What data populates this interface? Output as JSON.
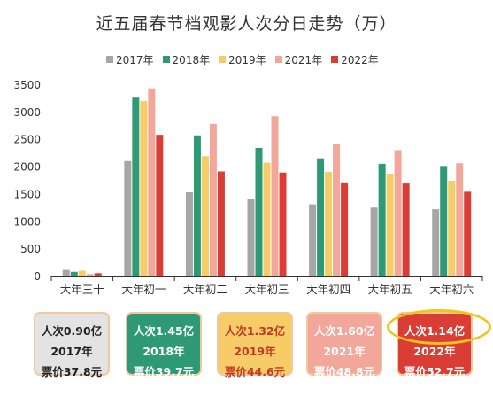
{
  "chart_data": {
    "type": "bar",
    "title": "近五届春节档观影人次分日走势（万）",
    "categories": [
      "大年三十",
      "大年初一",
      "大年初二",
      "大年初三",
      "大年初四",
      "大年初五",
      "大年初六"
    ],
    "series": [
      {
        "name": "2017年",
        "color": "#a6a6a6",
        "values": [
          120,
          2110,
          1540,
          1420,
          1320,
          1260,
          1230
        ]
      },
      {
        "name": "2018年",
        "color": "#2e9a75",
        "values": [
          85,
          3270,
          2580,
          2350,
          2160,
          2060,
          2020
        ]
      },
      {
        "name": "2019年",
        "color": "#f6cc66",
        "values": [
          105,
          3210,
          2200,
          2080,
          1910,
          1880,
          1750
        ]
      },
      {
        "name": "2021年",
        "color": "#f3a79b",
        "values": [
          45,
          3440,
          2790,
          2930,
          2430,
          2310,
          2070
        ]
      },
      {
        "name": "2022年",
        "color": "#d93d35",
        "values": [
          60,
          2590,
          1920,
          1900,
          1720,
          1700,
          1550
        ]
      }
    ],
    "yticks": [
      0,
      500,
      1000,
      1500,
      2000,
      2500,
      3000,
      3500
    ],
    "ylim": [
      0,
      3500
    ],
    "grid": false,
    "legend_position": "top"
  },
  "cards": [
    {
      "line1": "人次0.90亿",
      "line2": "2017年",
      "line3": "票价37.8元",
      "bg": "#e3e3e3",
      "fg": "#222222"
    },
    {
      "line1": "人次1.45亿",
      "line2": "2018年",
      "line3": "票价39.7元",
      "bg": "#2e9a75",
      "fg": "#ffffff"
    },
    {
      "line1": "人次1.32亿",
      "line2": "2019年",
      "line3": "票价44.6元",
      "bg": "#f6cc66",
      "fg": "#c0392b"
    },
    {
      "line1": "人次1.60亿",
      "line2": "2021年",
      "line3": "票价48.8元",
      "bg": "#f3a79b",
      "fg": "#ffffff"
    },
    {
      "line1": "人次1.14亿",
      "line2": "2022年",
      "line3": "票价52.7元",
      "bg": "#d93d35",
      "fg": "#ffffff"
    }
  ],
  "colors": {
    "axis": "#333333",
    "highlight": "#f3c31c"
  }
}
